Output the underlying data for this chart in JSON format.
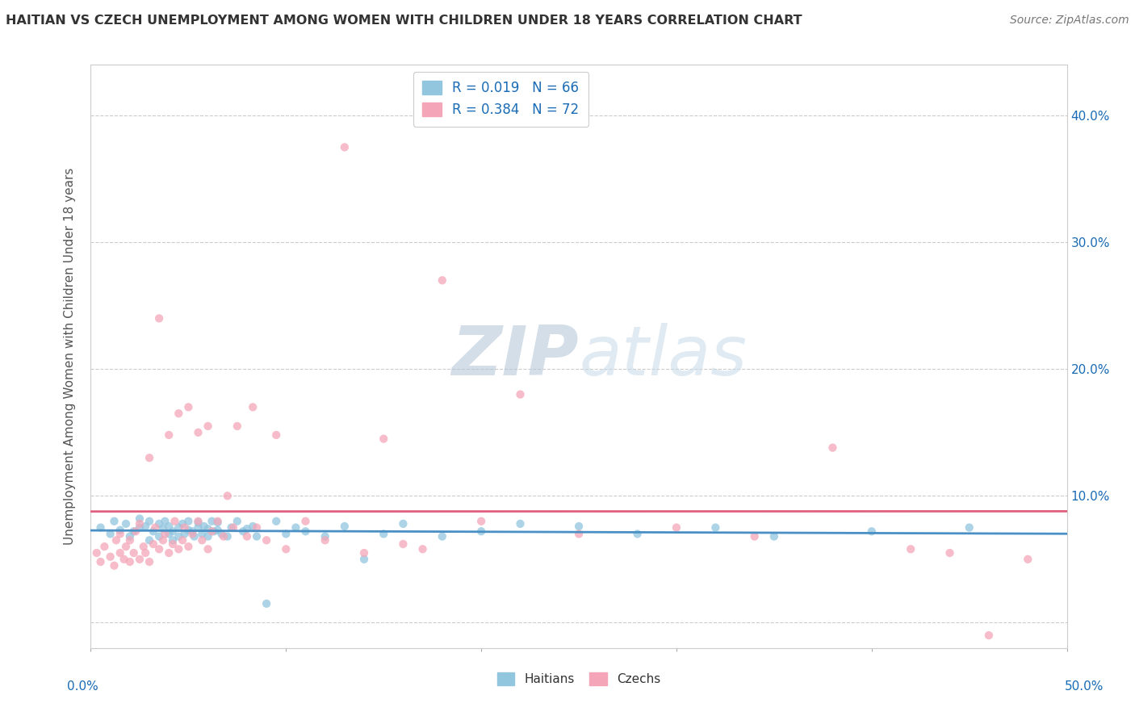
{
  "title": "HAITIAN VS CZECH UNEMPLOYMENT AMONG WOMEN WITH CHILDREN UNDER 18 YEARS CORRELATION CHART",
  "source": "Source: ZipAtlas.com",
  "ylabel": "Unemployment Among Women with Children Under 18 years",
  "xlim": [
    0.0,
    0.5
  ],
  "ylim": [
    -0.02,
    0.44
  ],
  "yticks": [
    0.0,
    0.1,
    0.2,
    0.3,
    0.4
  ],
  "ytick_labels_right": [
    "",
    "10.0%",
    "20.0%",
    "30.0%",
    "40.0%"
  ],
  "haitian_color": "#92c5de",
  "czech_color": "#f4a6b8",
  "haitian_line_color": "#4a90c4",
  "czech_line_color": "#e06080",
  "haitian_R": 0.019,
  "haitian_N": 66,
  "czech_R": 0.384,
  "czech_N": 72,
  "legend_text_color": "#1a6bb5",
  "background_color": "#ffffff",
  "haitian_x": [
    0.005,
    0.01,
    0.012,
    0.015,
    0.018,
    0.02,
    0.022,
    0.025,
    0.025,
    0.028,
    0.03,
    0.03,
    0.032,
    0.035,
    0.035,
    0.037,
    0.038,
    0.04,
    0.04,
    0.042,
    0.042,
    0.045,
    0.045,
    0.047,
    0.048,
    0.05,
    0.05,
    0.052,
    0.053,
    0.055,
    0.055,
    0.057,
    0.058,
    0.06,
    0.06,
    0.062,
    0.063,
    0.065,
    0.065,
    0.067,
    0.07,
    0.072,
    0.075,
    0.078,
    0.08,
    0.083,
    0.085,
    0.09,
    0.095,
    0.1,
    0.105,
    0.11,
    0.12,
    0.13,
    0.14,
    0.15,
    0.16,
    0.18,
    0.2,
    0.22,
    0.25,
    0.28,
    0.32,
    0.35,
    0.4,
    0.45
  ],
  "haitian_y": [
    0.075,
    0.07,
    0.08,
    0.073,
    0.078,
    0.068,
    0.072,
    0.075,
    0.082,
    0.076,
    0.065,
    0.08,
    0.072,
    0.068,
    0.078,
    0.074,
    0.08,
    0.07,
    0.076,
    0.065,
    0.072,
    0.068,
    0.075,
    0.078,
    0.07,
    0.073,
    0.08,
    0.072,
    0.068,
    0.075,
    0.079,
    0.07,
    0.076,
    0.068,
    0.074,
    0.08,
    0.072,
    0.073,
    0.079,
    0.07,
    0.068,
    0.075,
    0.08,
    0.072,
    0.074,
    0.076,
    0.068,
    0.015,
    0.08,
    0.07,
    0.075,
    0.072,
    0.068,
    0.076,
    0.05,
    0.07,
    0.078,
    0.068,
    0.072,
    0.078,
    0.076,
    0.07,
    0.075,
    0.068,
    0.072,
    0.075
  ],
  "czech_x": [
    0.003,
    0.005,
    0.007,
    0.01,
    0.012,
    0.013,
    0.015,
    0.015,
    0.017,
    0.018,
    0.02,
    0.02,
    0.022,
    0.023,
    0.025,
    0.025,
    0.027,
    0.028,
    0.03,
    0.03,
    0.032,
    0.033,
    0.035,
    0.035,
    0.037,
    0.038,
    0.04,
    0.04,
    0.042,
    0.043,
    0.045,
    0.045,
    0.047,
    0.048,
    0.05,
    0.05,
    0.052,
    0.055,
    0.055,
    0.057,
    0.06,
    0.06,
    0.062,
    0.065,
    0.068,
    0.07,
    0.073,
    0.075,
    0.08,
    0.083,
    0.085,
    0.09,
    0.095,
    0.1,
    0.11,
    0.12,
    0.13,
    0.14,
    0.15,
    0.16,
    0.17,
    0.18,
    0.2,
    0.22,
    0.25,
    0.3,
    0.34,
    0.38,
    0.42,
    0.44,
    0.46,
    0.48
  ],
  "czech_y": [
    0.055,
    0.048,
    0.06,
    0.052,
    0.045,
    0.065,
    0.055,
    0.07,
    0.05,
    0.06,
    0.048,
    0.065,
    0.055,
    0.072,
    0.05,
    0.078,
    0.06,
    0.055,
    0.048,
    0.13,
    0.062,
    0.075,
    0.058,
    0.24,
    0.065,
    0.07,
    0.055,
    0.148,
    0.062,
    0.08,
    0.058,
    0.165,
    0.065,
    0.075,
    0.06,
    0.17,
    0.07,
    0.08,
    0.15,
    0.065,
    0.058,
    0.155,
    0.072,
    0.08,
    0.068,
    0.1,
    0.075,
    0.155,
    0.068,
    0.17,
    0.075,
    0.065,
    0.148,
    0.058,
    0.08,
    0.065,
    0.375,
    0.055,
    0.145,
    0.062,
    0.058,
    0.27,
    0.08,
    0.18,
    0.07,
    0.075,
    0.068,
    0.138,
    0.058,
    0.055,
    -0.01,
    0.05
  ]
}
